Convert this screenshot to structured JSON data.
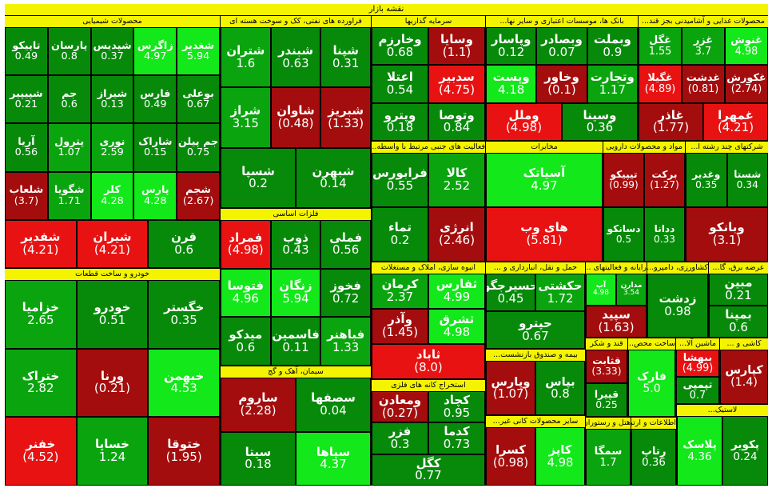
{
  "title": "نقشه بازار",
  "colors": {
    "strong_up": "#13e81a",
    "up": "#0aa50e",
    "mild_up": "#078a0a",
    "down": "#a40d0d",
    "strong_down": "#e81212",
    "header": "#f4f400"
  },
  "chart_data": {
    "type": "heatmap",
    "value_unit": "percent change",
    "sectors": [
      {
        "name": "محصولات شیمیایی",
        "stocks": [
          {
            "name": "شغدیر",
            "change": 5.94
          },
          {
            "name": "زاگرس",
            "change": 4.97
          },
          {
            "name": "شپدیس",
            "change": 0.37
          },
          {
            "name": "پارسان",
            "change": 0.8
          },
          {
            "name": "تاپیکو",
            "change": 0.49
          },
          {
            "name": "بوعلی",
            "change": 0.67
          },
          {
            "name": "فارس",
            "change": 0.49
          },
          {
            "name": "شیراز",
            "change": 0.13
          },
          {
            "name": "جم",
            "change": 0.6
          },
          {
            "name": "شپیپیر",
            "change": 0.21
          },
          {
            "name": "جم پیلن",
            "change": 0.75
          },
          {
            "name": "شاراک",
            "change": 0.15
          },
          {
            "name": "نوری",
            "change": 2.59
          },
          {
            "name": "پترول",
            "change": 1.07
          },
          {
            "name": "آریا",
            "change": 0.56
          },
          {
            "name": "شجم",
            "change": -2.67
          },
          {
            "name": "پارس",
            "change": 4.28
          },
          {
            "name": "کلر",
            "change": 4.28
          },
          {
            "name": "شگویا",
            "change": 1.71
          },
          {
            "name": "شلعاب",
            "change": -3.7
          },
          {
            "name": "قرن",
            "change": 0.6
          },
          {
            "name": "شیران",
            "change": -4.21
          },
          {
            "name": "شفدیر",
            "change": -4.21
          }
        ]
      },
      {
        "name": "فراورده های نفتی، کک و سوخت هسته ای",
        "stocks": [
          {
            "name": "شپنا",
            "change": 0.31
          },
          {
            "name": "شبندر",
            "change": 0.63
          },
          {
            "name": "شتران",
            "change": 1.6
          },
          {
            "name": "شبریز",
            "change": -1.33
          },
          {
            "name": "شاوان",
            "change": -0.48
          },
          {
            "name": "شراز",
            "change": 3.15
          },
          {
            "name": "شبهرن",
            "change": 0.14
          },
          {
            "name": "شسپا",
            "change": 0.2
          }
        ]
      },
      {
        "name": "سرمایه گذاریها",
        "stocks": [
          {
            "name": "وسایا",
            "change": -1.1
          },
          {
            "name": "وخارزم",
            "change": 0.68
          },
          {
            "name": "سدبیر",
            "change": -4.75
          },
          {
            "name": "اعتلا",
            "change": 0.54
          },
          {
            "name": "وتوصا",
            "change": 0.84
          },
          {
            "name": "وپترو",
            "change": 0.18
          }
        ]
      },
      {
        "name": "بانک ها، موسسات اعتباری و سایر نها...",
        "stocks": [
          {
            "name": "وبملت",
            "change": 0.9
          },
          {
            "name": "وبصادر",
            "change": 0.07
          },
          {
            "name": "وپاسار",
            "change": 0.12
          },
          {
            "name": "وتجارت",
            "change": 1.17
          },
          {
            "name": "وخاور",
            "change": -0.1
          },
          {
            "name": "وپست",
            "change": 4.18
          },
          {
            "name": "وسینا",
            "change": 0.36
          },
          {
            "name": "وملل",
            "change": -4.98
          }
        ]
      },
      {
        "name": "محصولات غذایی و آشامیدنی بجز قند...",
        "stocks": [
          {
            "name": "غنوش",
            "change": 4.98
          },
          {
            "name": "غزر",
            "change": 3.7
          },
          {
            "name": "غگل",
            "change": 1.55
          },
          {
            "name": "غکورش",
            "change": -2.74
          },
          {
            "name": "غدشت",
            "change": -0.81
          },
          {
            "name": "غگیلا",
            "change": -4.89
          },
          {
            "name": "غمهرا",
            "change": -4.21
          },
          {
            "name": "غاذر",
            "change": -1.77
          }
        ]
      },
      {
        "name": "فلزات اساسی",
        "stocks": [
          {
            "name": "فملی",
            "change": 0.56
          },
          {
            "name": "ذوب",
            "change": 0.43
          },
          {
            "name": "فمراد",
            "change": -4.98
          },
          {
            "name": "فخوز",
            "change": 0.72
          },
          {
            "name": "زنگان",
            "change": 5.94
          },
          {
            "name": "فتوسا",
            "change": 4.96
          },
          {
            "name": "فباهنر",
            "change": 1.33
          },
          {
            "name": "فاسمین",
            "change": 0.11
          },
          {
            "name": "میدکو",
            "change": 0.6
          }
        ]
      },
      {
        "name": "فعالیت های جنبی مرتبط با واسطه...",
        "stocks": [
          {
            "name": "کالا",
            "change": 2.52
          },
          {
            "name": "فرابورس",
            "change": 0.55
          },
          {
            "name": "انرژی",
            "change": -2.46
          },
          {
            "name": "تماء",
            "change": 0.2
          }
        ]
      },
      {
        "name": "مخابرات",
        "stocks": [
          {
            "name": "آسیاتک",
            "change": 4.97
          },
          {
            "name": "های وب",
            "change": -5.81
          }
        ]
      },
      {
        "name": "مواد و محصولات دارویی",
        "stocks": [
          {
            "name": "برکت",
            "change": -1.27
          },
          {
            "name": "تیپیکو",
            "change": -0.99
          },
          {
            "name": "ددانا",
            "change": 0.33
          },
          {
            "name": "دسانکو",
            "change": 0.5
          }
        ]
      },
      {
        "name": "شرکتهای چند رشته ا...",
        "stocks": [
          {
            "name": "شستا",
            "change": 0.34
          },
          {
            "name": "وغدیر",
            "change": 0.35
          },
          {
            "name": "وبانکو",
            "change": -3.1
          }
        ]
      },
      {
        "name": "خودرو و ساخت قطعات",
        "stocks": [
          {
            "name": "خگستر",
            "change": 0.35
          },
          {
            "name": "خودرو",
            "change": 0.51
          },
          {
            "name": "خزامیا",
            "change": 2.65
          },
          {
            "name": "خبهمن",
            "change": 4.53
          },
          {
            "name": "ورنا",
            "change": -0.21
          },
          {
            "name": "ختراک",
            "change": 2.82
          },
          {
            "name": "ختوقا",
            "change": -1.95
          },
          {
            "name": "خساپا",
            "change": 1.24
          },
          {
            "name": "خفنر",
            "change": -4.52
          }
        ]
      },
      {
        "name": "سیمان، آهک و گچ",
        "stocks": [
          {
            "name": "سصفها",
            "change": 0.04
          },
          {
            "name": "ساروم",
            "change": -2.28
          },
          {
            "name": "سپاها",
            "change": 4.37
          },
          {
            "name": "سیتا",
            "change": 0.18
          }
        ]
      },
      {
        "name": "استخراج کانه های فلزی",
        "stocks": [
          {
            "name": "کچاد",
            "change": 0.95
          },
          {
            "name": "ومعادن",
            "change": -0.27
          },
          {
            "name": "کدما",
            "change": 0.73
          },
          {
            "name": "فزر",
            "change": 0.3
          },
          {
            "name": "کگل",
            "change": 0.77
          }
        ]
      },
      {
        "name": "انبوه سازی، املاک و مستغلات",
        "stocks": [
          {
            "name": "ثفارس",
            "change": 4.99
          },
          {
            "name": "کرمان",
            "change": 2.37
          },
          {
            "name": "ثشرق",
            "change": 4.98
          },
          {
            "name": "وآذر",
            "change": -1.45
          },
          {
            "name": "ثاباد",
            "change": -8.0
          }
        ]
      },
      {
        "name": "حمل و نقل، انبارداری و ...",
        "stocks": [
          {
            "name": "حکشتی",
            "change": 1.72
          },
          {
            "name": "حسیرجگو",
            "change": 0.45
          },
          {
            "name": "حپترو",
            "change": 0.67
          }
        ]
      },
      {
        "name": "رایانه و فعالیتهای ...",
        "stocks": [
          {
            "name": "مدارن",
            "change": 3.54
          },
          {
            "name": "آپ",
            "change": 4.98
          },
          {
            "name": "سپید",
            "change": -1.63
          }
        ]
      },
      {
        "name": "کشاورزی، دامپرو...",
        "stocks": [
          {
            "name": "زدشت",
            "change": 0.98
          }
        ]
      },
      {
        "name": "عرضه برق، گا...",
        "stocks": [
          {
            "name": "مبین",
            "change": 0.21
          },
          {
            "name": "بمپنا",
            "change": 0.6
          }
        ]
      },
      {
        "name": "قند و شکر",
        "stocks": [
          {
            "name": "قثابت",
            "change": -3.33
          },
          {
            "name": "قپیرا",
            "change": 0.25
          }
        ]
      },
      {
        "name": "ساخت محص...",
        "stocks": [
          {
            "name": "فارک",
            "change": 5.0
          }
        ]
      },
      {
        "name": "بیمه و صندوق بازنشست...",
        "stocks": [
          {
            "name": "بپاس",
            "change": 0.8
          },
          {
            "name": "وپارس",
            "change": -1.07
          }
        ]
      },
      {
        "name": "ماشین آلا...",
        "stocks": [
          {
            "name": "ببهشا",
            "change": -4.99
          },
          {
            "name": "تپمپی",
            "change": 0.7
          }
        ]
      },
      {
        "name": "کاشی و ...",
        "stocks": [
          {
            "name": "کپارس",
            "change": -1.4
          }
        ]
      },
      {
        "name": "سایر محصولات کانی غیر...",
        "stocks": [
          {
            "name": "کاپز",
            "change": 4.98
          },
          {
            "name": "کسرا",
            "change": -0.98
          }
        ]
      },
      {
        "name": "هتل و رستوران",
        "stocks": [
          {
            "name": "سمگا",
            "change": 1.7
          }
        ]
      },
      {
        "name": "اطلاعات و ارتباطات",
        "stocks": [
          {
            "name": "رتاپ",
            "change": 0.36
          }
        ]
      },
      {
        "name": "لاستیک...",
        "stocks": [
          {
            "name": "پکویر",
            "change": 0.24
          },
          {
            "name": "پلاسک",
            "change": 4.36
          }
        ]
      }
    ]
  }
}
